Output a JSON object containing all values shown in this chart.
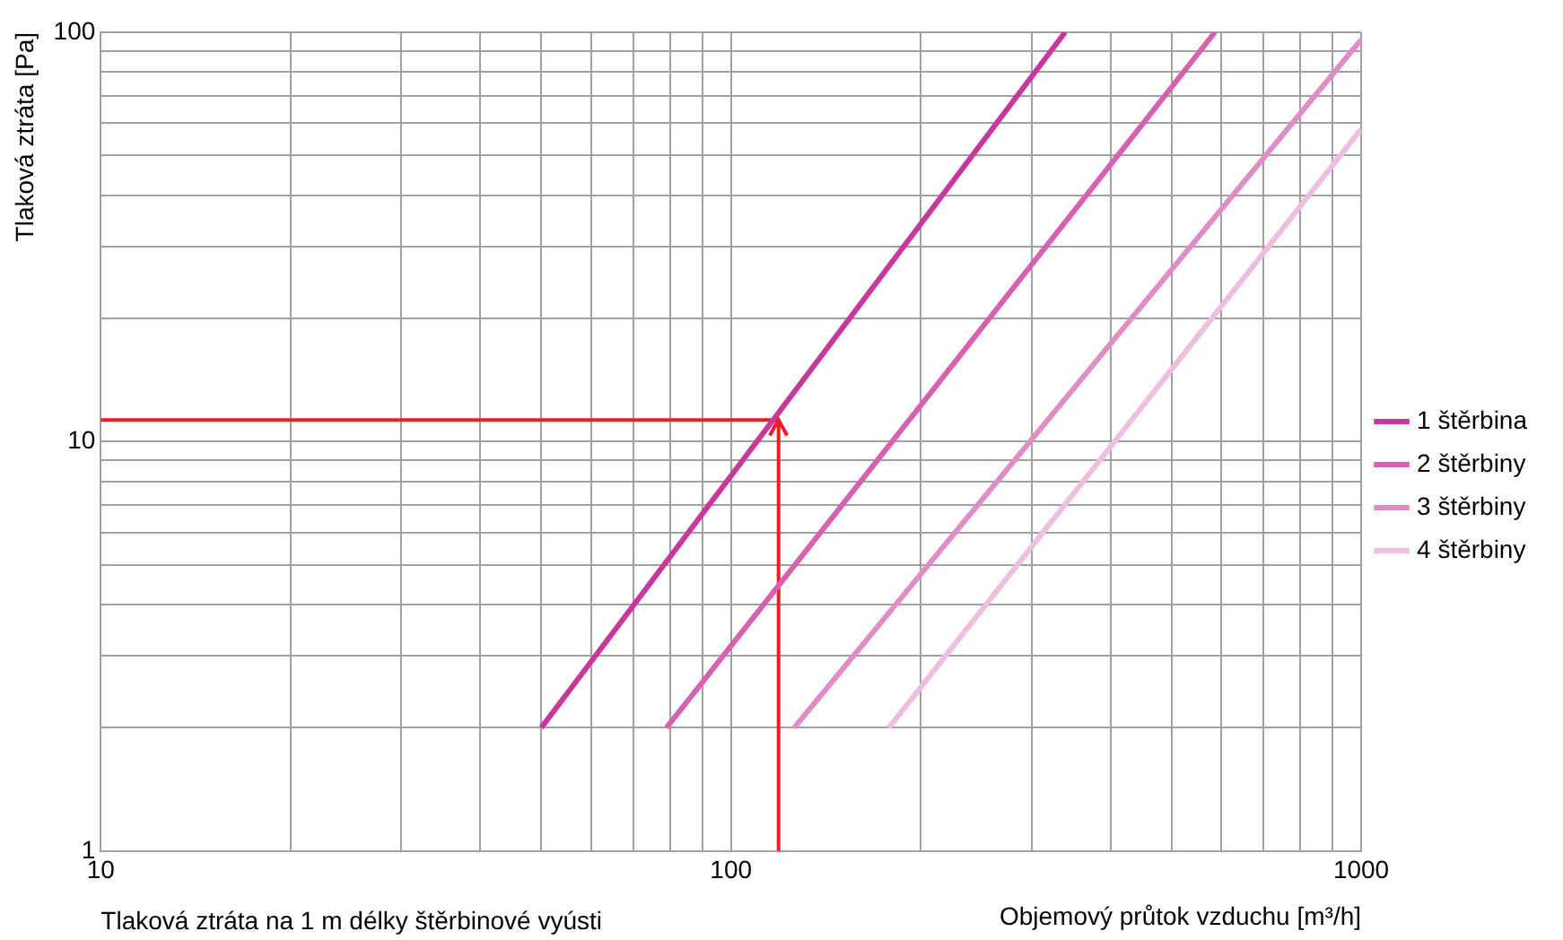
{
  "chart_data": {
    "type": "line",
    "xlabel": "Objemový průtok vzduchu [m³/h]",
    "ylabel": "Tlaková ztráta [Pa]",
    "annotations": [
      "Tlaková ztráta na 1 m délky štěrbinové vyústi"
    ],
    "log": "xy",
    "grid": true,
    "legend": "right",
    "marker": "none",
    "line_style": "solid",
    "xlim": [
      10,
      1000
    ],
    "ylim": [
      1,
      100
    ],
    "xticks": [
      10,
      {
        "value": 20,
        "label": null
      },
      {
        "value": 30,
        "label": null
      },
      {
        "value": 40,
        "label": null
      },
      {
        "value": 50,
        "label": null
      },
      {
        "value": 60,
        "label": null
      },
      {
        "value": 70,
        "label": null
      },
      {
        "value": 80,
        "label": null
      },
      {
        "value": 90,
        "label": null
      },
      100,
      {
        "value": 200,
        "label": null
      },
      {
        "value": 300,
        "label": null
      },
      {
        "value": 400,
        "label": null
      },
      {
        "value": 500,
        "label": null
      },
      {
        "value": 600,
        "label": null
      },
      {
        "value": 700,
        "label": null
      },
      {
        "value": 800,
        "label": null
      },
      {
        "value": 900,
        "label": null
      },
      1000
    ],
    "yticks": [
      1,
      {
        "value": 2,
        "label": null
      },
      {
        "value": 3,
        "label": null
      },
      {
        "value": 4,
        "label": null
      },
      {
        "value": 5,
        "label": null
      },
      {
        "value": 6,
        "label": null
      },
      {
        "value": 7,
        "label": null
      },
      {
        "value": 8,
        "label": null
      },
      {
        "value": 9,
        "label": null
      },
      10,
      {
        "value": 20,
        "label": null
      },
      {
        "value": 30,
        "label": null
      },
      {
        "value": 40,
        "label": null
      },
      {
        "value": 50,
        "label": null
      },
      {
        "value": 60,
        "label": null
      },
      {
        "value": 70,
        "label": null
      },
      {
        "value": 80,
        "label": null
      },
      {
        "value": 90,
        "label": null
      },
      100
    ],
    "series": [
      {
        "name": "1 štěrbina",
        "color": "#c8389c",
        "x": [
          50,
          339
        ],
        "values": [
          2,
          100
        ]
      },
      {
        "name": "2 štěrbiny",
        "color": "#d860b2",
        "x": [
          79,
          586
        ],
        "values": [
          2,
          100
        ]
      },
      {
        "name": "3 štěrbiny",
        "color": "#e08cc6",
        "x": [
          126,
          1000
        ],
        "values": [
          2,
          96
        ]
      },
      {
        "name": "4 štěrbiny",
        "color": "#eebde0",
        "x": [
          178,
          1000
        ],
        "values": [
          2,
          58
        ]
      },
      {
        "color": "#ee1c24",
        "x": [
          10,
          119,
          119
        ],
        "values": [
          11.3,
          11.3,
          1
        ]
      }
    ]
  }
}
